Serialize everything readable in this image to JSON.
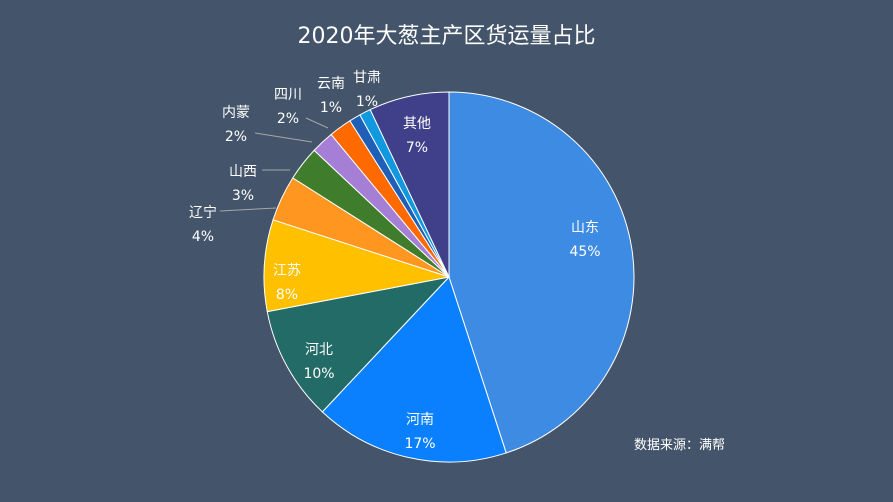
{
  "chart_data": {
    "type": "pie",
    "title": "2020年大葱主产区货运量占比",
    "source": "数据来源：满帮",
    "start_angle_deg": 0,
    "direction": "clockwise",
    "slices": [
      {
        "name": "山东",
        "label": "45%",
        "value": 45,
        "color": "#3D8BE2",
        "label_mode": "inside"
      },
      {
        "name": "河南",
        "label": "17%",
        "value": 17,
        "color": "#0A80FF",
        "label_mode": "inside"
      },
      {
        "name": "河北",
        "label": "10%",
        "value": 10,
        "color": "#236B66",
        "label_mode": "inside"
      },
      {
        "name": "江苏",
        "label": "8%",
        "value": 8,
        "color": "#FFC000",
        "label_mode": "inside"
      },
      {
        "name": "辽宁",
        "label": "4%",
        "value": 4,
        "color": "#FF9620",
        "label_mode": "outside"
      },
      {
        "name": "山西",
        "label": "3%",
        "value": 3,
        "color": "#3F7C2B",
        "label_mode": "outside"
      },
      {
        "name": "内蒙",
        "label": "2%",
        "value": 2,
        "color": "#A57ED6",
        "label_mode": "outside"
      },
      {
        "name": "四川",
        "label": "2%",
        "value": 2,
        "color": "#FF6A00",
        "label_mode": "outside"
      },
      {
        "name": "云南",
        "label": "1%",
        "value": 1,
        "color": "#1F5FB8",
        "label_mode": "outside"
      },
      {
        "name": "甘肃",
        "label": "1%",
        "value": 1,
        "color": "#1199E0",
        "label_mode": "outside"
      },
      {
        "name": "其他",
        "label": "7%",
        "value": 7,
        "color": "#3F3F8A",
        "label_mode": "inside"
      }
    ]
  }
}
